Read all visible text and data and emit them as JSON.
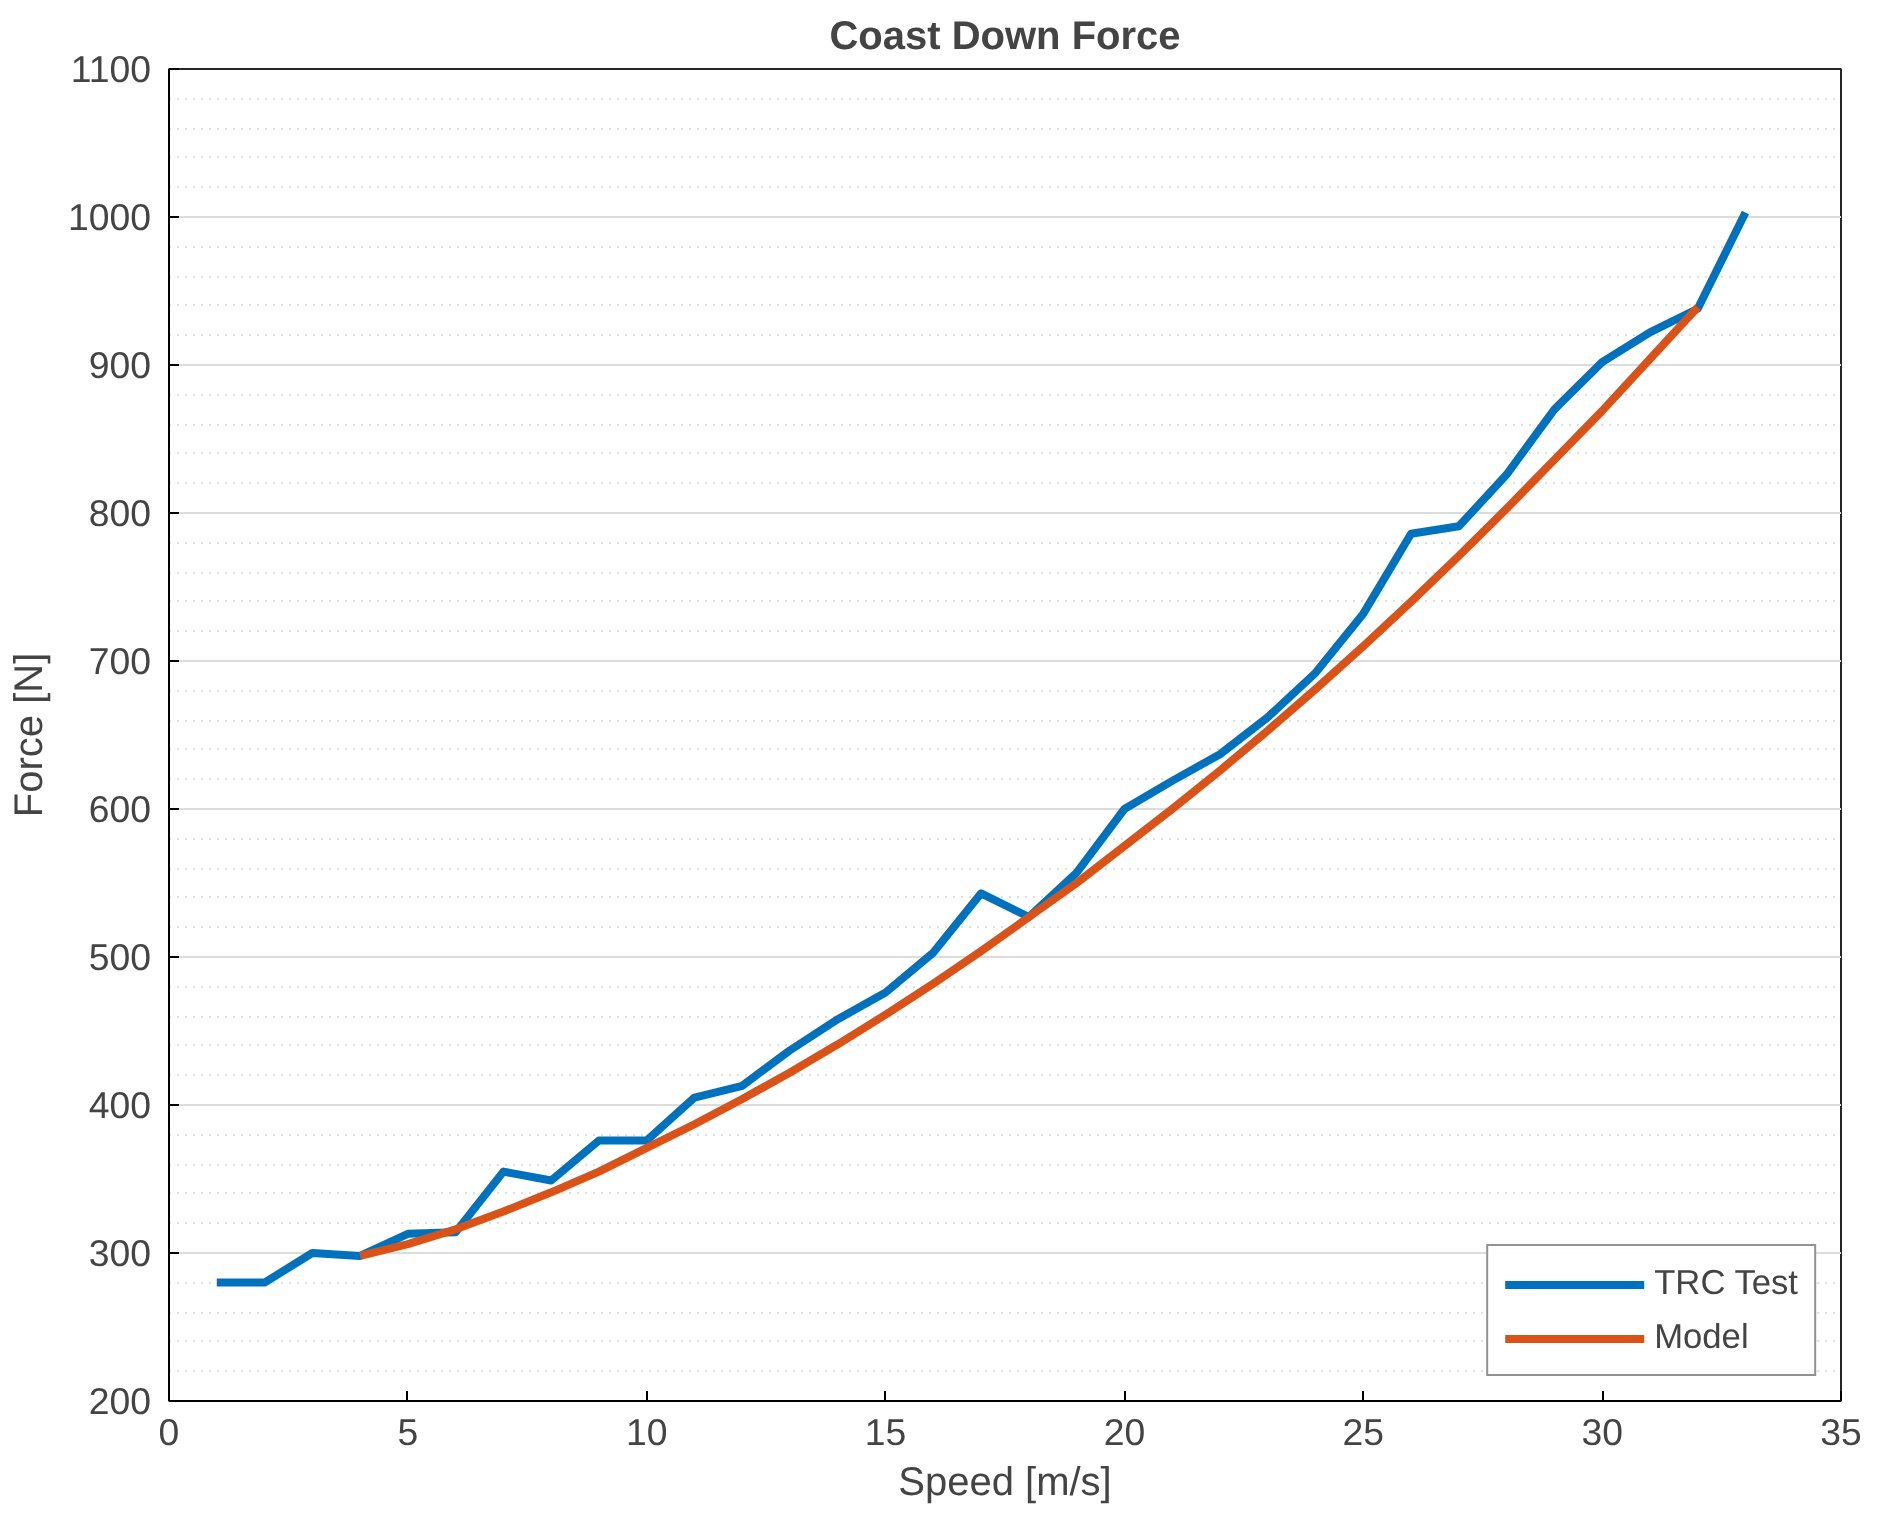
{
  "chart_data": {
    "type": "line",
    "title": "Coast Down Force",
    "xlabel": "Speed [m/s]",
    "ylabel": "Force [N]",
    "xlim": [
      0,
      35
    ],
    "xticks": [
      0,
      5,
      10,
      15,
      20,
      25,
      30,
      35
    ],
    "ylim": [
      200,
      1100
    ],
    "yticks": [
      200,
      300,
      400,
      500,
      600,
      700,
      800,
      900,
      1000,
      1100
    ],
    "grid": true,
    "legend": "bottom right",
    "marker": "none",
    "line_style": "solid",
    "series": [
      {
        "name": "TRC Test",
        "color": "#0072bd",
        "x": [
          1,
          2,
          3,
          4,
          5,
          6,
          7,
          8,
          9,
          10,
          11,
          12,
          13,
          14,
          15,
          16,
          17,
          18,
          19,
          20,
          21,
          22,
          23,
          24,
          25,
          26,
          27,
          28,
          29,
          30,
          31,
          32,
          33
        ],
        "values": [
          280,
          280,
          300,
          298,
          313,
          314,
          355,
          349,
          376,
          376,
          405,
          413,
          437,
          458,
          476,
          503,
          543,
          527,
          557,
          600,
          619,
          637,
          662,
          692,
          732,
          786,
          791,
          826,
          870,
          902,
          922,
          938,
          1003
        ]
      },
      {
        "name": "Model",
        "color": "#d95319",
        "x": [
          4,
          5,
          6,
          7,
          8,
          9,
          10,
          11,
          12,
          13,
          14,
          15,
          16,
          17,
          18,
          19,
          20,
          21,
          22,
          23,
          24,
          25,
          26,
          27,
          28,
          29,
          30,
          31,
          32
        ],
        "values": [
          298,
          306,
          316,
          328,
          341,
          355,
          371,
          387,
          404,
          422,
          441,
          461,
          482,
          504,
          527,
          550,
          575,
          600,
          626,
          653,
          681,
          710,
          740,
          771,
          803,
          836,
          869,
          904,
          939
        ]
      }
    ]
  }
}
